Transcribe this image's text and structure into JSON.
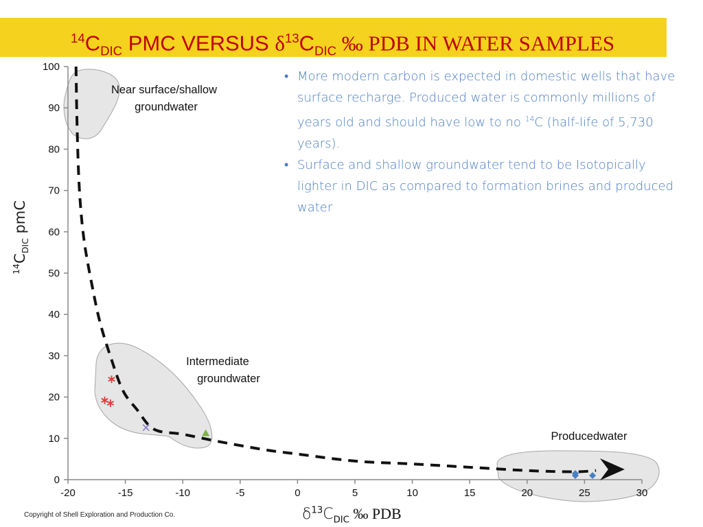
{
  "slide": {
    "title": {
      "iso14": "14",
      "c1": "C",
      "dic1": "DIC",
      "pmc_versus": " PMC VERSUS ",
      "delta": "δ",
      "iso13": "13",
      "c2": "C",
      "dic2": "DIC",
      "rest": " ‰ PDB IN WATER SAMPLES"
    },
    "bullets": {
      "b1_part1": "More modern carbon is expected in domestic wells that have surface recharge. Produced water is commonly millions of years old and should have low to no ",
      "b1_sup": "14",
      "b1_part2": "C (half-life of 5,730 years).",
      "b2": "Surface and shallow groundwater tend to be Isotopically lighter in DIC as compared to formation brines and produced water"
    },
    "copyright": "Copyright of Shell Exploration and Production Co.",
    "colors": {
      "title_bar": "#f5d21e",
      "title_text": "#c00000",
      "bullet_text": "#4a7bc4"
    }
  },
  "chart_data": {
    "type": "scatter",
    "xlim": [
      -20,
      30
    ],
    "ylim": [
      0,
      100
    ],
    "x_ticks": [
      -20,
      -15,
      -10,
      -5,
      0,
      5,
      10,
      15,
      20,
      25,
      30
    ],
    "y_ticks": [
      0,
      10,
      20,
      30,
      40,
      50,
      60,
      70,
      80,
      90,
      100
    ],
    "ylabel": {
      "iso": "14",
      "c": "C",
      "sub": "DIC",
      "unit": " pmC"
    },
    "xlabel": {
      "delta": "δ",
      "iso": "13",
      "c": "C",
      "sub": "DIC",
      "unit": " ‰ PDB"
    },
    "grid": false,
    "series": [
      {
        "marker": "asterisk",
        "color": "#e03a3a",
        "points": [
          [
            -16.2,
            24.3
          ],
          [
            -16.8,
            19.2
          ],
          [
            -16.3,
            18.5
          ]
        ]
      },
      {
        "marker": "x",
        "color": "#8a7ac8",
        "points": [
          [
            -13.2,
            12.6
          ]
        ]
      },
      {
        "marker": "triangle",
        "color": "#7cb342",
        "points": [
          [
            -8.0,
            11.2
          ]
        ]
      },
      {
        "marker": "diamond",
        "color": "#4a7fc1",
        "points": [
          [
            24.2,
            1.5
          ],
          [
            24.2,
            1.0
          ],
          [
            25.7,
            1.0
          ]
        ]
      }
    ],
    "trend_curve": [
      [
        -19.3,
        100
      ],
      [
        -19.2,
        85
      ],
      [
        -19.0,
        70
      ],
      [
        -18.6,
        58
      ],
      [
        -17.9,
        47
      ],
      [
        -17.2,
        38
      ],
      [
        -16.2,
        29
      ],
      [
        -15.2,
        21.5
      ],
      [
        -14.0,
        17
      ],
      [
        -12.5,
        12.2
      ],
      [
        -10.0,
        11.0
      ],
      [
        -7.0,
        9.3
      ],
      [
        -3.0,
        7.3
      ],
      [
        0.0,
        6.2
      ],
      [
        5.0,
        4.5
      ],
      [
        10.0,
        3.8
      ],
      [
        15.0,
        3.0
      ],
      [
        20.0,
        2.2
      ],
      [
        24.0,
        1.9
      ],
      [
        26.0,
        2.2
      ]
    ],
    "arrow_tip": [
      28.5,
      2.5
    ],
    "regions": [
      {
        "label_line1": "Near surface/shallow",
        "label_line2": "groundwater"
      },
      {
        "label_line1": "Intermediate",
        "label_line2": "groundwater"
      },
      {
        "label_line1": "Producedwater",
        "label_line2": ""
      }
    ],
    "region_color": "#e6e6e6"
  }
}
